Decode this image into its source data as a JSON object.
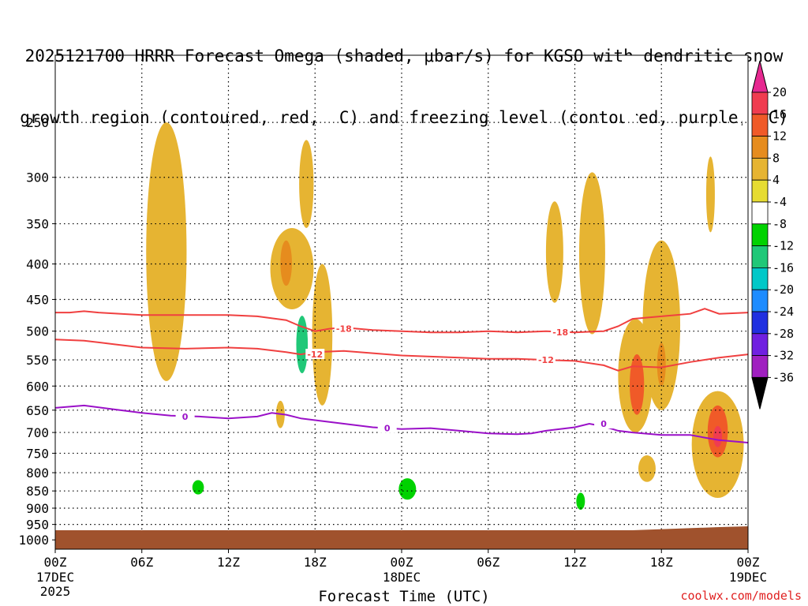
{
  "chart_data": {
    "type": "time-height contour",
    "title_line1": "2025121700 HRRR Forecast Omega (shaded, μbar/s) for KGSO with dendritic snow",
    "title_line2": "growth region (contoured, red, ºC) and freezing level (contoured, purple, ºC)",
    "xlabel": "Forecast Time (UTC)",
    "credit": "coolwx.com/models",
    "x_ticks": [
      {
        "hour": 0,
        "label": "00Z",
        "sub1": "17DEC",
        "sub2": "2025"
      },
      {
        "hour": 6,
        "label": "06Z"
      },
      {
        "hour": 12,
        "label": "12Z"
      },
      {
        "hour": 18,
        "label": "18Z"
      },
      {
        "hour": 24,
        "label": "00Z",
        "sub1": "18DEC"
      },
      {
        "hour": 30,
        "label": "06Z"
      },
      {
        "hour": 36,
        "label": "12Z"
      },
      {
        "hour": 42,
        "label": "18Z"
      },
      {
        "hour": 48,
        "label": "00Z",
        "sub1": "19DEC"
      }
    ],
    "x_range_hours": [
      0,
      48
    ],
    "y_ticks_hpa": [
      250,
      300,
      350,
      400,
      450,
      500,
      550,
      600,
      650,
      700,
      750,
      800,
      850,
      900,
      950,
      1000
    ],
    "y_range_hpa": [
      200,
      1010
    ],
    "ground_color": "#a0522d",
    "colorbar": {
      "levels": [
        -36,
        -32,
        -28,
        -24,
        -20,
        -16,
        -12,
        -8,
        -4,
        4,
        8,
        12,
        16,
        20
      ],
      "colors": [
        "#9e9e9e",
        "#a020c0",
        "#7020e0",
        "#2030e0",
        "#1e8cff",
        "#00c8c8",
        "#20c878",
        "#00d200",
        "#ffffff",
        "#e6dc32",
        "#e6b432",
        "#e68c1e",
        "#f05a28",
        "#f03c50",
        "#e62890"
      ]
    },
    "contours": [
      {
        "name": "dgz-top",
        "label": "-18",
        "color": "#f04040",
        "points": [
          [
            0,
            470
          ],
          [
            1,
            470
          ],
          [
            2,
            468
          ],
          [
            3,
            470
          ],
          [
            6,
            474
          ],
          [
            9,
            474
          ],
          [
            12,
            474
          ],
          [
            14,
            476
          ],
          [
            16,
            482
          ],
          [
            17,
            492
          ],
          [
            18,
            500
          ],
          [
            19,
            496
          ],
          [
            20,
            494
          ],
          [
            22,
            498
          ],
          [
            24,
            500
          ],
          [
            26,
            502
          ],
          [
            28,
            502
          ],
          [
            30,
            500
          ],
          [
            32,
            502
          ],
          [
            34,
            500
          ],
          [
            36,
            502
          ],
          [
            38,
            500
          ],
          [
            39,
            492
          ],
          [
            40,
            480
          ],
          [
            42,
            476
          ],
          [
            44,
            472
          ],
          [
            45,
            464
          ],
          [
            46,
            472
          ],
          [
            48,
            470
          ]
        ],
        "label_at": [
          [
            20,
            496
          ],
          [
            35,
            502
          ]
        ]
      },
      {
        "name": "dgz-bottom",
        "label": "-12",
        "color": "#f04040",
        "points": [
          [
            0,
            514
          ],
          [
            2,
            516
          ],
          [
            4,
            522
          ],
          [
            6,
            528
          ],
          [
            9,
            530
          ],
          [
            12,
            528
          ],
          [
            14,
            530
          ],
          [
            16,
            536
          ],
          [
            17,
            540
          ],
          [
            18,
            536
          ],
          [
            20,
            534
          ],
          [
            22,
            538
          ],
          [
            24,
            542
          ],
          [
            26,
            544
          ],
          [
            28,
            546
          ],
          [
            30,
            548
          ],
          [
            32,
            548
          ],
          [
            34,
            550
          ],
          [
            36,
            552
          ],
          [
            38,
            560
          ],
          [
            39,
            570
          ],
          [
            40,
            562
          ],
          [
            42,
            564
          ],
          [
            44,
            554
          ],
          [
            46,
            546
          ],
          [
            48,
            540
          ]
        ],
        "label_at": [
          [
            18,
            540
          ],
          [
            34,
            550
          ]
        ]
      },
      {
        "name": "freezing-level",
        "label": "0",
        "color": "#9a10c8",
        "points": [
          [
            0,
            645
          ],
          [
            2,
            640
          ],
          [
            4,
            648
          ],
          [
            6,
            656
          ],
          [
            8,
            662
          ],
          [
            10,
            664
          ],
          [
            12,
            668
          ],
          [
            14,
            664
          ],
          [
            15,
            656
          ],
          [
            16,
            660
          ],
          [
            17,
            668
          ],
          [
            18,
            672
          ],
          [
            20,
            680
          ],
          [
            22,
            688
          ],
          [
            24,
            692
          ],
          [
            26,
            690
          ],
          [
            28,
            696
          ],
          [
            30,
            702
          ],
          [
            32,
            704
          ],
          [
            33,
            702
          ],
          [
            34,
            696
          ],
          [
            36,
            688
          ],
          [
            37,
            680
          ],
          [
            38,
            686
          ],
          [
            39,
            696
          ],
          [
            40,
            700
          ],
          [
            42,
            706
          ],
          [
            44,
            706
          ],
          [
            45,
            712
          ],
          [
            46,
            718
          ],
          [
            48,
            724
          ]
        ],
        "label_at": [
          [
            9,
            664
          ],
          [
            23,
            690
          ],
          [
            38,
            680
          ]
        ]
      }
    ],
    "omega_cells": [
      {
        "x": 6,
        "y": 748,
        "rx": 2.0,
        "ry": 75,
        "value": -6
      },
      {
        "x": 9.8,
        "y": 808,
        "rx": 1.6,
        "ry": 70,
        "value": -6
      },
      {
        "x": 9.9,
        "y": 840,
        "rx": 0.4,
        "ry": 20,
        "value": -10
      },
      {
        "x": 13.4,
        "y": 810,
        "rx": 1.0,
        "ry": 55,
        "value": -6
      },
      {
        "x": 12.2,
        "y": 340,
        "rx": 0.7,
        "ry": 60,
        "value": -6
      },
      {
        "x": 16.0,
        "y": 840,
        "rx": 0.8,
        "ry": 40,
        "value": -6
      },
      {
        "x": 17.1,
        "y": 520,
        "rx": 0.8,
        "ry": 75,
        "value": -6
      },
      {
        "x": 17.1,
        "y": 525,
        "rx": 0.4,
        "ry": 50,
        "value": -14
      },
      {
        "x": 18.3,
        "y": 665,
        "rx": 0.3,
        "ry": 15,
        "value": -6
      },
      {
        "x": 19.4,
        "y": 250,
        "rx": 0.3,
        "ry": 40,
        "value": -6
      },
      {
        "x": 20.8,
        "y": 310,
        "rx": 0.3,
        "ry": 20,
        "value": -6
      },
      {
        "x": 22.0,
        "y": 460,
        "rx": 1.6,
        "ry": 95,
        "value": -6
      },
      {
        "x": 24.4,
        "y": 820,
        "rx": 1.4,
        "ry": 95,
        "value": -6
      },
      {
        "x": 24.4,
        "y": 845,
        "rx": 0.6,
        "ry": 30,
        "value": -10
      },
      {
        "x": 26.5,
        "y": 640,
        "rx": 0.9,
        "ry": 150,
        "value": -6
      },
      {
        "x": 36.4,
        "y": 780,
        "rx": 1.1,
        "ry": 180,
        "value": -6
      },
      {
        "x": 36.4,
        "y": 880,
        "rx": 0.3,
        "ry": 25,
        "value": -10
      },
      {
        "x": 38.8,
        "y": 800,
        "rx": 0.8,
        "ry": 35,
        "value": -6
      },
      {
        "x": 39.8,
        "y": 225,
        "rx": 0.5,
        "ry": 45,
        "value": -6
      },
      {
        "x": 42.1,
        "y": 900,
        "rx": 0.7,
        "ry": 45,
        "value": -6
      },
      {
        "x": 47.2,
        "y": 900,
        "rx": 0.3,
        "ry": 45,
        "value": -6
      },
      {
        "x": 47.9,
        "y": 370,
        "rx": 0.3,
        "ry": 220,
        "value": -6
      },
      {
        "x": 7.7,
        "y": 420,
        "rx": 1.4,
        "ry": 170,
        "value": 6
      },
      {
        "x": 16.4,
        "y": 410,
        "rx": 1.5,
        "ry": 55,
        "value": 6
      },
      {
        "x": 16.0,
        "y": 400,
        "rx": 0.4,
        "ry": 30,
        "value": 10
      },
      {
        "x": 17.4,
        "y": 310,
        "rx": 0.5,
        "ry": 45,
        "value": 6
      },
      {
        "x": 18.5,
        "y": 520,
        "rx": 0.7,
        "ry": 120,
        "value": 6
      },
      {
        "x": 15.6,
        "y": 660,
        "rx": 0.3,
        "ry": 30,
        "value": 6
      },
      {
        "x": 34.6,
        "y": 390,
        "rx": 0.6,
        "ry": 65,
        "value": 6
      },
      {
        "x": 37.2,
        "y": 400,
        "rx": 0.9,
        "ry": 105,
        "value": 6
      },
      {
        "x": 40.2,
        "y": 590,
        "rx": 1.2,
        "ry": 110,
        "value": 6
      },
      {
        "x": 40.3,
        "y": 600,
        "rx": 0.5,
        "ry": 60,
        "value": 12
      },
      {
        "x": 42.0,
        "y": 510,
        "rx": 1.3,
        "ry": 140,
        "value": 6
      },
      {
        "x": 42.0,
        "y": 560,
        "rx": 0.3,
        "ry": 40,
        "value": 10
      },
      {
        "x": 45.4,
        "y": 320,
        "rx": 0.3,
        "ry": 40,
        "value": 6
      },
      {
        "x": 45.9,
        "y": 740,
        "rx": 1.8,
        "ry": 130,
        "value": 6
      },
      {
        "x": 45.9,
        "y": 700,
        "rx": 0.7,
        "ry": 60,
        "value": 12
      },
      {
        "x": 45.9,
        "y": 710,
        "rx": 0.3,
        "ry": 25,
        "value": 18
      },
      {
        "x": 41.0,
        "y": 790,
        "rx": 0.6,
        "ry": 35,
        "value": 6
      }
    ]
  }
}
